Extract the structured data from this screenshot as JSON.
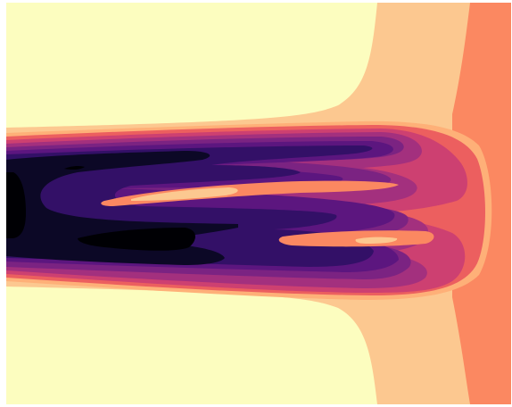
{
  "chart_data": {
    "type": "heatmap",
    "title": "",
    "xlabel": "",
    "ylabel": "",
    "colormap": "magma",
    "axes_visible": false,
    "grid": false,
    "legend": "none",
    "levels": [
      {
        "level": 0,
        "color": "#000004"
      },
      {
        "level": 1,
        "color": "#0c0826"
      },
      {
        "level": 2,
        "color": "#331067"
      },
      {
        "level": 3,
        "color": "#5c167f"
      },
      {
        "level": 4,
        "color": "#7b2382"
      },
      {
        "level": 5,
        "color": "#a3307e"
      },
      {
        "level": 6,
        "color": "#cd4071"
      },
      {
        "level": 7,
        "color": "#ec5f5f"
      },
      {
        "level": 8,
        "color": "#fb8861"
      },
      {
        "level": 9,
        "color": "#feb078"
      },
      {
        "level": 10,
        "color": "#fcc890"
      },
      {
        "level": 11,
        "color": "#fcfdbf"
      }
    ],
    "field_description_levels": {
      "background_top_bottom_left": 11,
      "vertical_band_x_mid": 10,
      "right_edge_column": 8,
      "jet_outer_shell": 7,
      "jet_core_left": 0
    }
  }
}
